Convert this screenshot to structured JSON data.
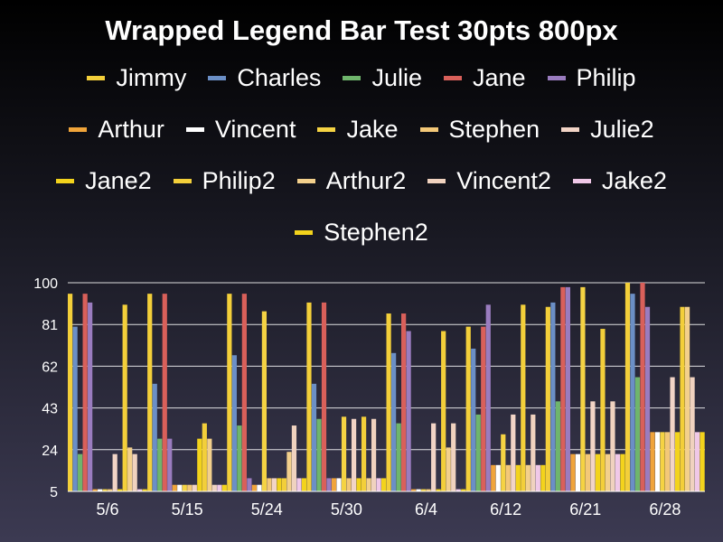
{
  "chart_data": {
    "type": "bar",
    "title": "Wrapped Legend Bar Test 30pts 800px",
    "xlabel": "",
    "ylabel": "",
    "ylim": [
      5,
      100
    ],
    "yticks": [
      "100",
      "81",
      "62",
      "43",
      "24",
      "5"
    ],
    "categories": [
      "5/6",
      "5/15",
      "5/24",
      "5/30",
      "6/4",
      "6/12",
      "6/21",
      "6/28"
    ],
    "grid": true,
    "legend_position": "top",
    "series": [
      {
        "name": "Jimmy",
        "color": "#f3cf3a",
        "values": [
          95,
          95,
          95,
          91,
          86,
          80,
          89,
          100
        ]
      },
      {
        "name": "Charles",
        "color": "#6b8fc6",
        "values": [
          80,
          54,
          67,
          54,
          68,
          70,
          91,
          95
        ]
      },
      {
        "name": "Julie",
        "color": "#6fb56c",
        "values": [
          22,
          29,
          35,
          38,
          36,
          40,
          46,
          57
        ]
      },
      {
        "name": "Jane",
        "color": "#d9605a",
        "values": [
          95,
          95,
          95,
          91,
          86,
          80,
          98,
          100
        ]
      },
      {
        "name": "Philip",
        "color": "#9a7cbf",
        "values": [
          91,
          29,
          11,
          11,
          78,
          90,
          98,
          89
        ]
      },
      {
        "name": "Arthur",
        "color": "#f0a43a",
        "values": [
          6,
          8,
          8,
          11,
          6,
          17,
          22,
          32
        ]
      },
      {
        "name": "Vincent",
        "color": "#ffffff",
        "values": [
          6,
          8,
          8,
          11,
          6,
          17,
          22,
          32
        ]
      },
      {
        "name": "Jake",
        "color": "#f5d343",
        "values": [
          6,
          8,
          87,
          39,
          6,
          31,
          98,
          32
        ]
      },
      {
        "name": "Stephen",
        "color": "#f3c878",
        "values": [
          6,
          8,
          11,
          11,
          6,
          17,
          22,
          32
        ]
      },
      {
        "name": "Julie2",
        "color": "#f2d4c6",
        "values": [
          22,
          8,
          11,
          38,
          36,
          40,
          46,
          57
        ]
      },
      {
        "name": "Jane2",
        "color": "#f3d31c",
        "values": [
          6,
          29,
          11,
          11,
          6,
          17,
          22,
          32
        ]
      },
      {
        "name": "Philip2",
        "color": "#f3cf3a",
        "values": [
          90,
          36,
          11,
          39,
          78,
          90,
          79,
          89
        ]
      },
      {
        "name": "Arthur2",
        "color": "#f3d08c",
        "values": [
          25,
          29,
          23,
          11,
          25,
          17,
          22,
          89
        ]
      },
      {
        "name": "Vincent2",
        "color": "#f0d2bf",
        "values": [
          22,
          8,
          35,
          38,
          36,
          40,
          46,
          57
        ]
      },
      {
        "name": "Jake2",
        "color": "#f0c8e8",
        "values": [
          6,
          8,
          11,
          11,
          6,
          17,
          22,
          32
        ]
      },
      {
        "name": "Stephen2",
        "color": "#f3d31c",
        "values": [
          6,
          8,
          11,
          11,
          6,
          17,
          22,
          32
        ]
      }
    ]
  }
}
